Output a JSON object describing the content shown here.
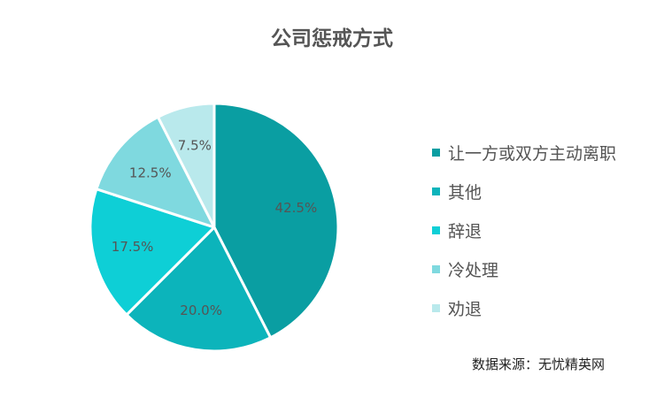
{
  "title": "公司惩戒方式",
  "source": "数据来源：无忧精英网",
  "chart_data": {
    "type": "pie",
    "categories": [
      "让一方或双方主动离职",
      "其他",
      "辞退",
      "冷处理",
      "劝退"
    ],
    "values": [
      42.5,
      20.0,
      17.5,
      12.5,
      7.5
    ],
    "value_labels": [
      "42.5%",
      "20.0%",
      "17.5%",
      "12.5%",
      "7.5%"
    ],
    "colors": [
      "#0a9ea2",
      "#0cb4bb",
      "#0ecfd6",
      "#7fd9df",
      "#b9e9ec"
    ],
    "legend_position": "right"
  }
}
